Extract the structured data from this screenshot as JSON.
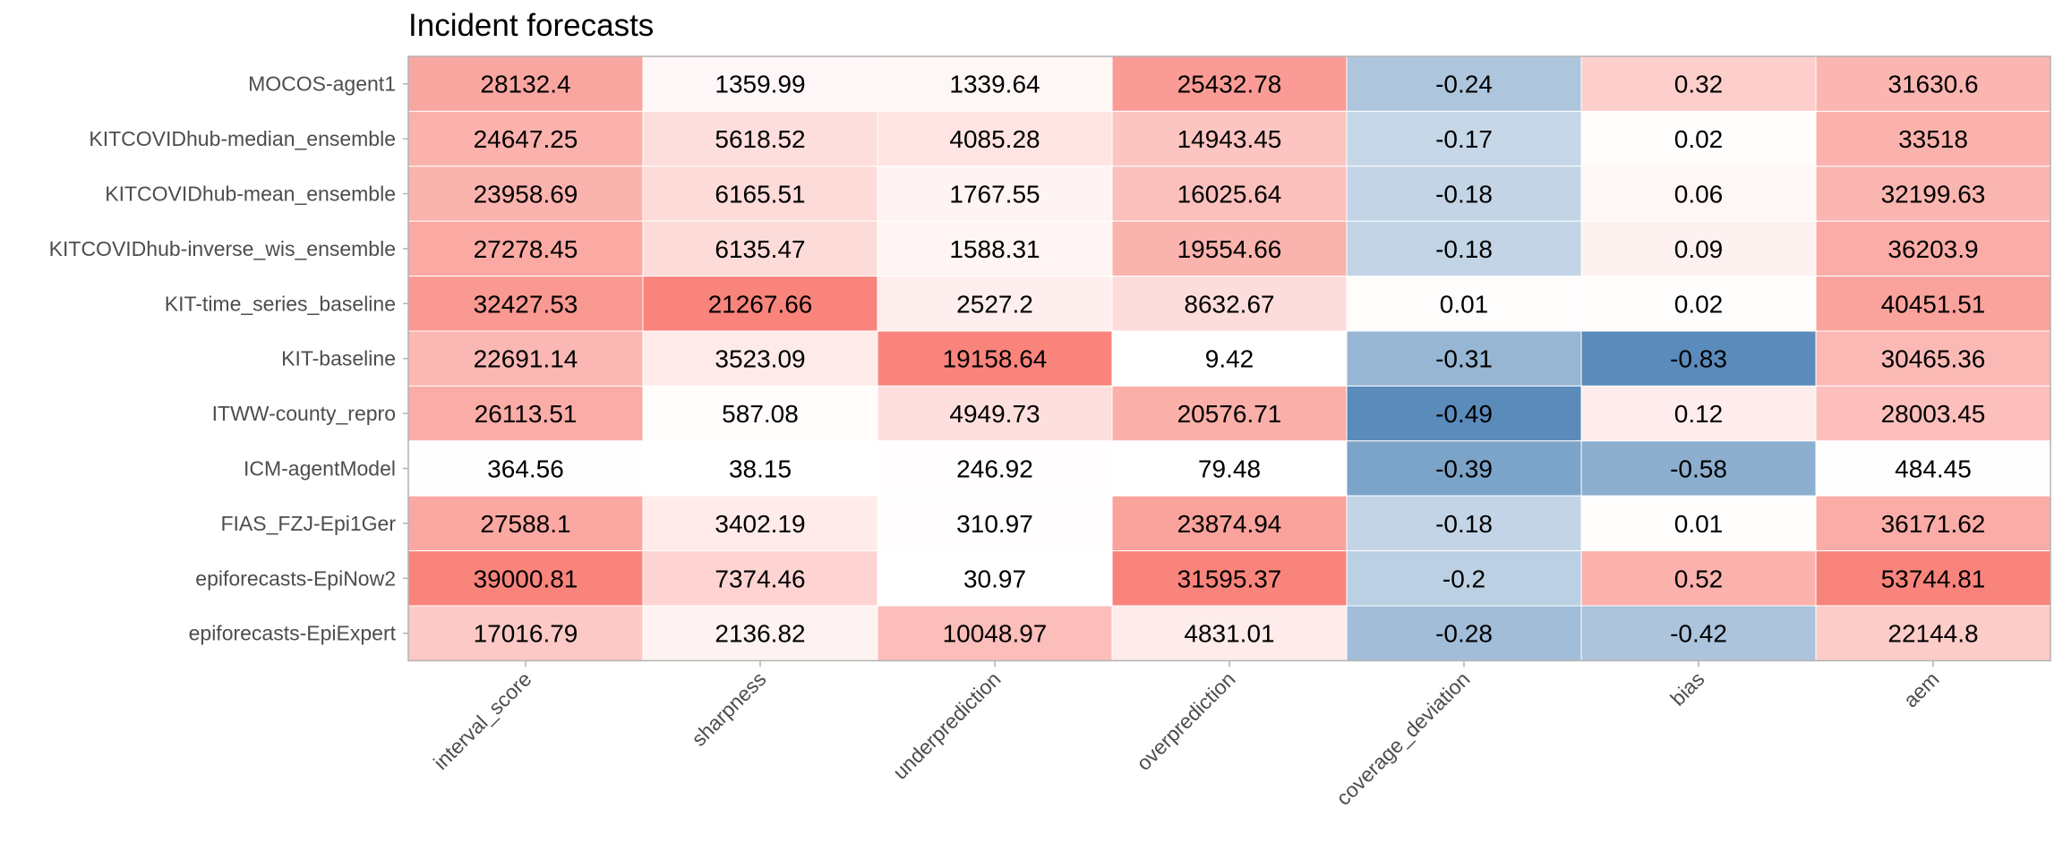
{
  "chart_data": {
    "type": "heatmap",
    "title": "Incident  forecasts",
    "columns": [
      "interval_score",
      "sharpness",
      "underprediction",
      "overprediction",
      "coverage_deviation",
      "bias",
      "aem"
    ],
    "rows": [
      "MOCOS-agent1",
      "KITCOVIDhub-median_ensemble",
      "KITCOVIDhub-mean_ensemble",
      "KITCOVIDhub-inverse_wis_ensemble",
      "KIT-time_series_baseline",
      "KIT-baseline",
      "ITWW-county_repro",
      "ICM-agentModel",
      "FIAS_FZJ-Epi1Ger",
      "epiforecasts-EpiNow2",
      "epiforecasts-EpiExpert"
    ],
    "values": [
      [
        "28132.4",
        "1359.99",
        "1339.64",
        "25432.78",
        "-0.24",
        "0.32",
        "31630.6"
      ],
      [
        "24647.25",
        "5618.52",
        "4085.28",
        "14943.45",
        "-0.17",
        "0.02",
        "33518"
      ],
      [
        "23958.69",
        "6165.51",
        "1767.55",
        "16025.64",
        "-0.18",
        "0.06",
        "32199.63"
      ],
      [
        "27278.45",
        "6135.47",
        "1588.31",
        "19554.66",
        "-0.18",
        "0.09",
        "36203.9"
      ],
      [
        "32427.53",
        "21267.66",
        "2527.2",
        "8632.67",
        "0.01",
        "0.02",
        "40451.51"
      ],
      [
        "22691.14",
        "3523.09",
        "19158.64",
        "9.42",
        "-0.31",
        "-0.83",
        "30465.36"
      ],
      [
        "26113.51",
        "587.08",
        "4949.73",
        "20576.71",
        "-0.49",
        "0.12",
        "28003.45"
      ],
      [
        "364.56",
        "38.15",
        "246.92",
        "79.48",
        "-0.39",
        "-0.58",
        "484.45"
      ],
      [
        "27588.1",
        "3402.19",
        "310.97",
        "23874.94",
        "-0.18",
        "0.01",
        "36171.62"
      ],
      [
        "39000.81",
        "7374.46",
        "30.97",
        "31595.37",
        "-0.2",
        "0.52",
        "53744.81"
      ],
      [
        "17016.79",
        "2136.82",
        "10048.97",
        "4831.01",
        "-0.28",
        "-0.42",
        "22144.8"
      ]
    ],
    "colors": {
      "positive": "#f8766d",
      "negative": "#5a8bba",
      "neutral": "#ffffff",
      "border": "#b3b3b3"
    }
  }
}
